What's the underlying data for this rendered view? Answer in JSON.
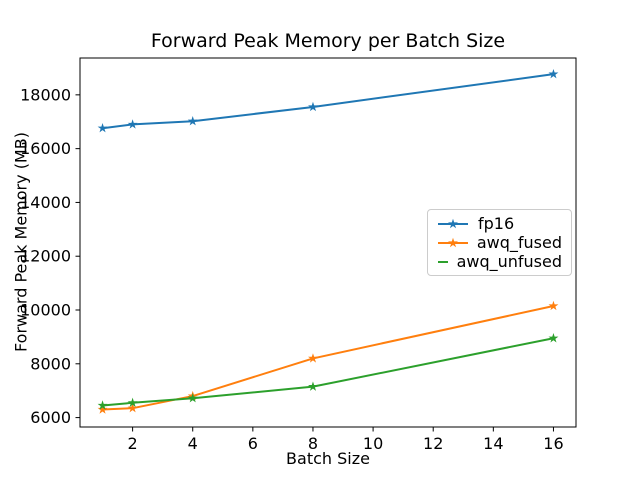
{
  "chart_data": {
    "type": "line",
    "title": "Forward Peak Memory per Batch Size",
    "xlabel": "Batch Size",
    "ylabel": "Forward Peak Memory (MB)",
    "x": [
      1,
      2,
      4,
      8,
      16
    ],
    "series": [
      {
        "name": "fp16",
        "color": "#1f77b4",
        "values": [
          16760,
          16900,
          17020,
          17550,
          18770
        ]
      },
      {
        "name": "awq_fused",
        "color": "#ff7f0e",
        "values": [
          6300,
          6350,
          6800,
          8200,
          10150
        ]
      },
      {
        "name": "awq_unfused",
        "color": "#2ca02c",
        "values": [
          6450,
          6550,
          6720,
          7150,
          8950
        ]
      }
    ],
    "marker": "star",
    "xlim": [
      0.25,
      16.75
    ],
    "ylim": [
      5650,
      19370
    ],
    "xticks": [
      2,
      4,
      6,
      8,
      10,
      12,
      14,
      16
    ],
    "yticks": [
      6000,
      8000,
      10000,
      12000,
      14000,
      16000,
      18000
    ],
    "grid": false,
    "legend_position": "center right"
  }
}
